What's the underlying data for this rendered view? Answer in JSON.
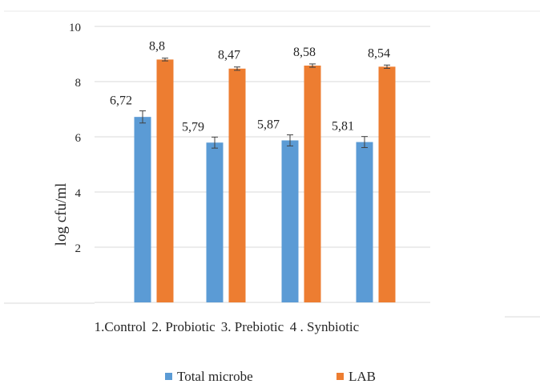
{
  "chart_data": {
    "type": "bar",
    "title": "",
    "xlabel": "",
    "ylabel": "log cfu/ml",
    "ylim": [
      0,
      10
    ],
    "yticks": [
      "",
      "2",
      "4",
      "6",
      "8",
      "10"
    ],
    "grid": true,
    "legend_position": "bottom",
    "categories": [
      "1.Control",
      "2. Probiotic",
      "3. Prebiotic",
      "4 . Synbiotic"
    ],
    "series": [
      {
        "name": "Total microbe",
        "color": "#5b9bd5",
        "values": [
          6.72,
          5.79,
          5.87,
          5.81
        ],
        "labels": [
          "6,72",
          "5,79",
          "5,87",
          "5,81"
        ],
        "error": [
          0.22,
          0.2,
          0.2,
          0.2
        ]
      },
      {
        "name": "LAB",
        "color": "#ed7d31",
        "values": [
          8.8,
          8.47,
          8.58,
          8.54
        ],
        "labels": [
          "8,8",
          "8,47",
          "8,58",
          "8,54"
        ],
        "error": [
          0.05,
          0.06,
          0.06,
          0.06
        ]
      }
    ]
  }
}
